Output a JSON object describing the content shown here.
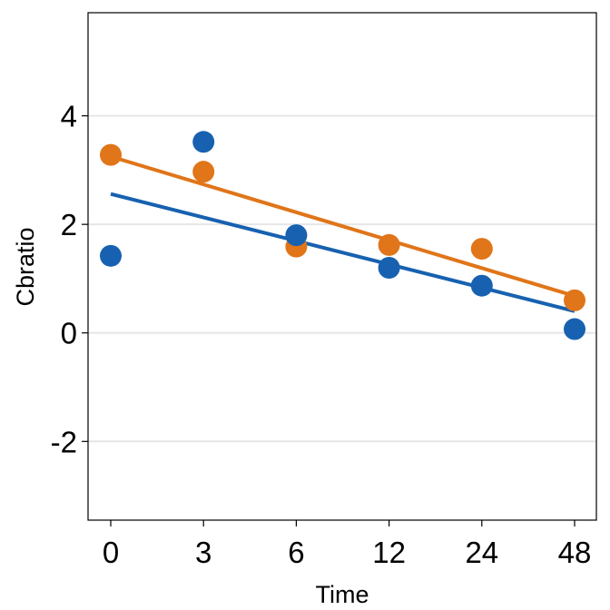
{
  "chart_data": {
    "type": "scatter",
    "title": "",
    "xlabel": "Time",
    "ylabel": "Cbratio",
    "x_categories": [
      "0",
      "3",
      "6",
      "12",
      "24",
      "48"
    ],
    "yticks": [
      -2,
      0,
      2,
      4
    ],
    "ylim": [
      -3.45,
      5.9
    ],
    "grid": "horizontal major lines",
    "legend": "none",
    "series": [
      {
        "color": "#1761b0",
        "points": [
          1.42,
          3.52,
          1.8,
          1.2,
          0.87,
          0.07
        ],
        "fit": [
          2.56,
          0.4
        ]
      },
      {
        "color": "#e07519",
        "points": [
          3.28,
          2.97,
          1.59,
          1.62,
          1.55,
          0.6
        ],
        "fit": [
          3.25,
          0.68
        ]
      }
    ]
  }
}
